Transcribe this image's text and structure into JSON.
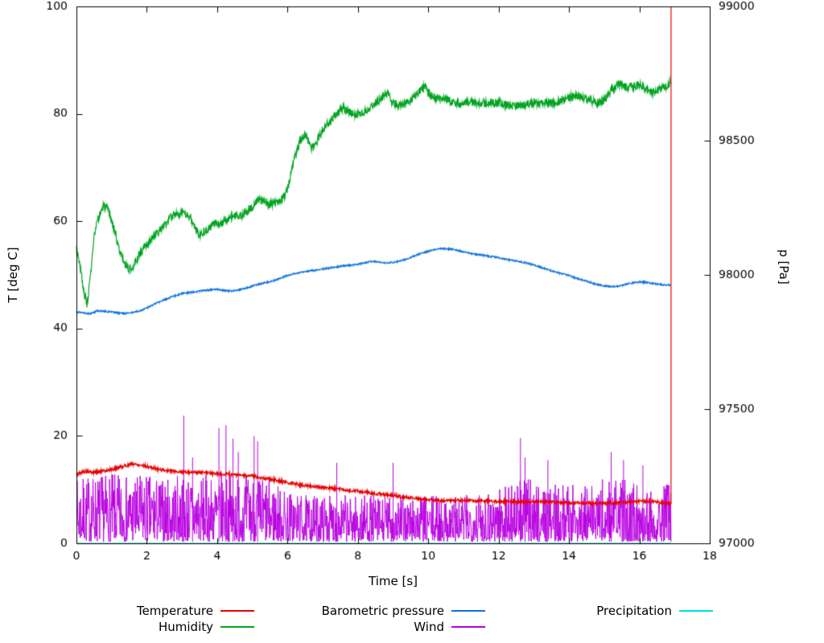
{
  "chart_data": {
    "type": "line",
    "title": "",
    "xlabel": "Time [s]",
    "ylabel_left": "T [deg C]",
    "ylabel_right": "p [Pa]",
    "xlim": [
      0,
      18
    ],
    "ylim_left": [
      0,
      100
    ],
    "ylim_right": [
      97000,
      99000
    ],
    "x_ticks": [
      0,
      2,
      4,
      6,
      8,
      10,
      12,
      14,
      16,
      18
    ],
    "y_ticks_left": [
      0,
      20,
      40,
      60,
      80,
      100
    ],
    "y_ticks_right": [
      97000,
      97500,
      98000,
      98500,
      99000
    ],
    "grid": false,
    "legend_position": "bottom",
    "legend": [
      {
        "label": "Temperature",
        "color": "#e60000"
      },
      {
        "label": "Humidity",
        "color": "#00a420"
      },
      {
        "label": "Barometric pressure",
        "color": "#0c71dc"
      },
      {
        "label": "Wind",
        "color": "#b800e0"
      },
      {
        "label": "Precipitation",
        "color": "#00dddd"
      }
    ],
    "series": [
      {
        "name": "Precipitation",
        "color": "#00dddd",
        "axis": "left",
        "seed": 1,
        "noise": 0,
        "width": 1.1,
        "x_range": [
          0,
          16.9
        ],
        "anchors": [
          [
            0,
            0
          ],
          [
            16.9,
            0
          ]
        ]
      },
      {
        "name": "Wind",
        "color": "#b800e0",
        "axis": "left",
        "seed": 7,
        "kind": "spiky",
        "min": 0.3,
        "width": 1,
        "x_range": [
          0,
          16.9
        ],
        "anchors": [
          [
            0,
            12
          ],
          [
            0.5,
            13
          ],
          [
            1,
            13
          ],
          [
            1.5,
            12.5
          ],
          [
            2,
            13
          ],
          [
            2.5,
            12
          ],
          [
            3,
            13
          ],
          [
            3.5,
            12.5
          ],
          [
            4,
            13
          ],
          [
            4.5,
            13
          ],
          [
            5,
            13
          ],
          [
            5.5,
            12
          ],
          [
            6,
            10
          ],
          [
            6.5,
            9
          ],
          [
            7,
            9
          ],
          [
            7.5,
            9
          ],
          [
            8,
            9
          ],
          [
            8.5,
            9
          ],
          [
            9,
            9
          ],
          [
            9.5,
            9
          ],
          [
            10,
            9
          ],
          [
            10.5,
            9
          ],
          [
            11,
            9
          ],
          [
            11.5,
            10
          ],
          [
            12,
            11
          ],
          [
            12.5,
            12
          ],
          [
            13,
            12
          ],
          [
            13.5,
            11
          ],
          [
            14,
            11
          ],
          [
            14.5,
            11
          ],
          [
            15,
            12
          ],
          [
            15.5,
            12
          ],
          [
            16,
            11
          ],
          [
            16.5,
            11
          ],
          [
            16.9,
            11
          ]
        ],
        "spikes": [
          [
            3.05,
            23.8
          ],
          [
            3.3,
            16
          ],
          [
            4.05,
            21.5
          ],
          [
            4.25,
            22
          ],
          [
            4.45,
            19.5
          ],
          [
            4.6,
            17
          ],
          [
            5.05,
            20
          ],
          [
            5.15,
            19
          ],
          [
            7.4,
            15
          ],
          [
            9.0,
            15
          ],
          [
            12.62,
            19.6
          ],
          [
            12.75,
            16
          ],
          [
            13.4,
            15.5
          ],
          [
            15.2,
            17
          ],
          [
            15.55,
            15.5
          ],
          [
            16.1,
            14.5
          ]
        ]
      },
      {
        "name": "Humidity",
        "color": "#00a420",
        "axis": "left",
        "seed": 3,
        "noise": 0.8,
        "width": 1.2,
        "x_range": [
          0,
          16.9
        ],
        "anchors": [
          [
            0,
            55
          ],
          [
            0.1,
            52
          ],
          [
            0.2,
            47
          ],
          [
            0.3,
            44.5
          ],
          [
            0.4,
            50
          ],
          [
            0.5,
            57
          ],
          [
            0.6,
            60
          ],
          [
            0.7,
            62
          ],
          [
            0.8,
            63
          ],
          [
            0.9,
            62
          ],
          [
            1.0,
            60
          ],
          [
            1.1,
            58
          ],
          [
            1.2,
            55
          ],
          [
            1.35,
            52.5
          ],
          [
            1.5,
            51
          ],
          [
            1.65,
            52
          ],
          [
            1.8,
            54
          ],
          [
            2.0,
            55.5
          ],
          [
            2.2,
            57
          ],
          [
            2.4,
            58.5
          ],
          [
            2.6,
            60
          ],
          [
            2.8,
            61.5
          ],
          [
            3.0,
            61.5
          ],
          [
            3.2,
            61
          ],
          [
            3.4,
            58.5
          ],
          [
            3.5,
            57.5
          ],
          [
            3.7,
            58.5
          ],
          [
            3.9,
            59.5
          ],
          [
            4.1,
            59.5
          ],
          [
            4.3,
            60.5
          ],
          [
            4.5,
            61
          ],
          [
            4.7,
            61
          ],
          [
            4.9,
            62
          ],
          [
            5.1,
            63.5
          ],
          [
            5.3,
            64
          ],
          [
            5.5,
            63
          ],
          [
            5.7,
            63.5
          ],
          [
            5.9,
            64.5
          ],
          [
            6.0,
            66
          ],
          [
            6.1,
            69
          ],
          [
            6.2,
            72
          ],
          [
            6.35,
            75
          ],
          [
            6.5,
            76
          ],
          [
            6.6,
            75
          ],
          [
            6.7,
            73.5
          ],
          [
            6.8,
            74.5
          ],
          [
            7.0,
            77
          ],
          [
            7.2,
            78.5
          ],
          [
            7.4,
            80
          ],
          [
            7.6,
            81
          ],
          [
            7.8,
            80
          ],
          [
            8.0,
            80
          ],
          [
            8.2,
            80.5
          ],
          [
            8.4,
            81.5
          ],
          [
            8.6,
            82.5
          ],
          [
            8.8,
            84
          ],
          [
            8.9,
            83
          ],
          [
            9.0,
            82
          ],
          [
            9.2,
            81.5
          ],
          [
            9.4,
            82
          ],
          [
            9.6,
            83
          ],
          [
            9.8,
            84.5
          ],
          [
            9.9,
            85
          ],
          [
            10.0,
            84
          ],
          [
            10.2,
            83
          ],
          [
            10.4,
            83
          ],
          [
            10.6,
            82.5
          ],
          [
            10.8,
            82
          ],
          [
            11.0,
            82
          ],
          [
            11.5,
            82
          ],
          [
            12.0,
            82
          ],
          [
            12.3,
            81.5
          ],
          [
            12.6,
            81.5
          ],
          [
            13.0,
            82
          ],
          [
            13.3,
            82
          ],
          [
            13.6,
            82
          ],
          [
            14.0,
            83
          ],
          [
            14.2,
            83.5
          ],
          [
            14.4,
            83
          ],
          [
            14.6,
            82.5
          ],
          [
            14.8,
            82
          ],
          [
            15.0,
            82.5
          ],
          [
            15.2,
            84.5
          ],
          [
            15.4,
            85.5
          ],
          [
            15.6,
            85
          ],
          [
            15.8,
            85
          ],
          [
            16.0,
            85.5
          ],
          [
            16.2,
            84.5
          ],
          [
            16.4,
            84
          ],
          [
            16.6,
            84.5
          ],
          [
            16.8,
            85
          ],
          [
            16.9,
            86
          ]
        ]
      },
      {
        "name": "Barometric pressure",
        "color": "#0c71dc",
        "axis": "right",
        "seed": 4,
        "noise": 3,
        "width": 1.2,
        "x_range": [
          0,
          16.9
        ],
        "anchors": [
          [
            0,
            97862
          ],
          [
            0.2,
            97858
          ],
          [
            0.4,
            97856
          ],
          [
            0.6,
            97866
          ],
          [
            0.8,
            97864
          ],
          [
            1.0,
            97862
          ],
          [
            1.2,
            97858
          ],
          [
            1.4,
            97856
          ],
          [
            1.6,
            97860
          ],
          [
            1.8,
            97866
          ],
          [
            2.0,
            97876
          ],
          [
            2.2,
            97890
          ],
          [
            2.4,
            97902
          ],
          [
            2.6,
            97912
          ],
          [
            2.8,
            97922
          ],
          [
            3.0,
            97930
          ],
          [
            3.2,
            97934
          ],
          [
            3.4,
            97938
          ],
          [
            3.6,
            97942
          ],
          [
            3.8,
            97944
          ],
          [
            4.0,
            97946
          ],
          [
            4.2,
            97942
          ],
          [
            4.4,
            97940
          ],
          [
            4.6,
            97944
          ],
          [
            4.8,
            97950
          ],
          [
            5.0,
            97958
          ],
          [
            5.2,
            97966
          ],
          [
            5.4,
            97972
          ],
          [
            5.6,
            97978
          ],
          [
            5.8,
            97988
          ],
          [
            6.0,
            97998
          ],
          [
            6.2,
            98004
          ],
          [
            6.4,
            98010
          ],
          [
            6.6,
            98014
          ],
          [
            6.8,
            98018
          ],
          [
            7.0,
            98022
          ],
          [
            7.2,
            98026
          ],
          [
            7.4,
            98030
          ],
          [
            7.6,
            98034
          ],
          [
            7.8,
            98036
          ],
          [
            8.0,
            98040
          ],
          [
            8.2,
            98046
          ],
          [
            8.4,
            98050
          ],
          [
            8.6,
            98048
          ],
          [
            8.8,
            98044
          ],
          [
            9.0,
            98046
          ],
          [
            9.2,
            98052
          ],
          [
            9.4,
            98060
          ],
          [
            9.6,
            98070
          ],
          [
            9.8,
            98080
          ],
          [
            10.0,
            98088
          ],
          [
            10.2,
            98094
          ],
          [
            10.4,
            98098
          ],
          [
            10.6,
            98096
          ],
          [
            10.8,
            98092
          ],
          [
            11.0,
            98086
          ],
          [
            11.2,
            98080
          ],
          [
            11.4,
            98076
          ],
          [
            11.6,
            98072
          ],
          [
            11.8,
            98068
          ],
          [
            12.0,
            98064
          ],
          [
            12.2,
            98058
          ],
          [
            12.4,
            98054
          ],
          [
            12.6,
            98050
          ],
          [
            12.8,
            98044
          ],
          [
            13.0,
            98038
          ],
          [
            13.2,
            98028
          ],
          [
            13.4,
            98020
          ],
          [
            13.6,
            98012
          ],
          [
            13.8,
            98004
          ],
          [
            14.0,
            97998
          ],
          [
            14.2,
            97988
          ],
          [
            14.4,
            97980
          ],
          [
            14.6,
            97972
          ],
          [
            14.8,
            97964
          ],
          [
            15.0,
            97960
          ],
          [
            15.2,
            97956
          ],
          [
            15.4,
            97958
          ],
          [
            15.6,
            97964
          ],
          [
            15.8,
            97970
          ],
          [
            16.0,
            97974
          ],
          [
            16.2,
            97972
          ],
          [
            16.4,
            97968
          ],
          [
            16.6,
            97964
          ],
          [
            16.8,
            97962
          ],
          [
            16.9,
            97962
          ]
        ]
      },
      {
        "name": "Temperature",
        "color": "#e60000",
        "axis": "left",
        "seed": 5,
        "noise": 0.3,
        "width": 1.2,
        "x_range": [
          0,
          16.9
        ],
        "terminal_spike_to": 100,
        "anchors": [
          [
            0,
            12.8
          ],
          [
            0.2,
            13.4
          ],
          [
            0.5,
            13.2
          ],
          [
            0.8,
            13.5
          ],
          [
            1.0,
            13.8
          ],
          [
            1.3,
            14.3
          ],
          [
            1.6,
            14.8
          ],
          [
            1.9,
            14.5
          ],
          [
            2.2,
            14.0
          ],
          [
            2.5,
            13.6
          ],
          [
            3.0,
            13.3
          ],
          [
            3.5,
            13.2
          ],
          [
            4.0,
            13.0
          ],
          [
            4.5,
            12.8
          ],
          [
            5.0,
            12.5
          ],
          [
            5.5,
            12.0
          ],
          [
            6.0,
            11.3
          ],
          [
            6.5,
            10.8
          ],
          [
            7.0,
            10.4
          ],
          [
            7.5,
            10.1
          ],
          [
            8.0,
            9.7
          ],
          [
            8.5,
            9.3
          ],
          [
            9.0,
            8.9
          ],
          [
            9.5,
            8.5
          ],
          [
            10.0,
            8.1
          ],
          [
            10.5,
            7.9
          ],
          [
            11.0,
            8.0
          ],
          [
            11.5,
            7.9
          ],
          [
            12.0,
            7.8
          ],
          [
            12.5,
            7.7
          ],
          [
            13.0,
            7.8
          ],
          [
            13.5,
            7.7
          ],
          [
            14.0,
            7.5
          ],
          [
            14.5,
            7.5
          ],
          [
            15.0,
            7.5
          ],
          [
            15.5,
            7.6
          ],
          [
            16.0,
            7.9
          ],
          [
            16.4,
            7.8
          ],
          [
            16.9,
            7.4
          ]
        ]
      }
    ]
  }
}
